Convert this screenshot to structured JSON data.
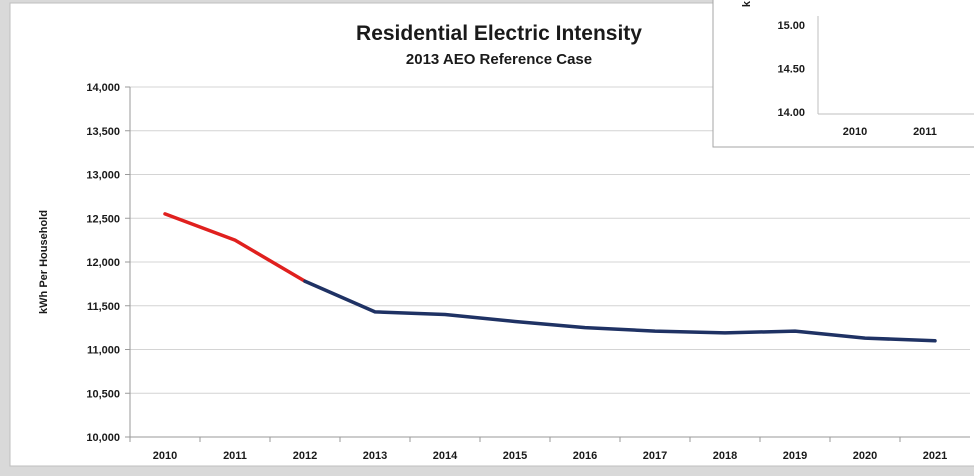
{
  "chart_data": [
    {
      "type": "line",
      "title": "Residential Electric Intensity",
      "subtitle": "2013 AEO Reference Case",
      "xlabel": "",
      "ylabel": "kWh Per Household",
      "categories": [
        "2010",
        "2011",
        "2012",
        "2013",
        "2014",
        "2015",
        "2016",
        "2017",
        "2018",
        "2019",
        "2020",
        "2021"
      ],
      "ylim": [
        10000,
        14000
      ],
      "yticks": [
        "10,000",
        "10,500",
        "11,000",
        "11,500",
        "12,000",
        "12,500",
        "13,000",
        "13,500",
        "14,000"
      ],
      "grid": "horizontal",
      "series": [
        {
          "segments": [
            {
              "from": 0,
              "to": 2,
              "color": "#e0201e"
            },
            {
              "from": 2,
              "to": 11,
              "color": "#1f3264"
            }
          ],
          "values": [
            12550,
            12250,
            11780,
            11430,
            11400,
            11320,
            11250,
            11210,
            11190,
            11210,
            11130,
            11100
          ]
        }
      ]
    },
    {
      "type": "line",
      "ylabel": "k",
      "categories": [
        "2010",
        "2011"
      ],
      "yticks": [
        "15.00",
        "14.50",
        "14.00"
      ],
      "ylim": [
        14.0,
        15.25
      ],
      "series": []
    }
  ]
}
